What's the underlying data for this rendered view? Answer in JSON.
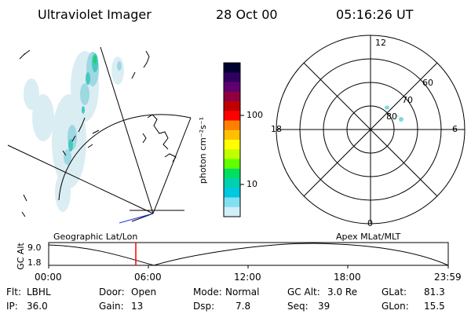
{
  "header": {
    "instrument": "Ultraviolet Imager",
    "date": "28 Oct 00",
    "time": "05:16:26 UT"
  },
  "colorbar": {
    "label": "photon cm⁻²s⁻¹",
    "ticks": [
      "100",
      "10"
    ],
    "colors": [
      "#000030",
      "#300060",
      "#600070",
      "#900040",
      "#c00000",
      "#ff0000",
      "#ff8000",
      "#ffc000",
      "#ffff00",
      "#c0ff00",
      "#60ff00",
      "#00e060",
      "#00d0b0",
      "#00c8e0",
      "#80e0f0",
      "#d0f0f8"
    ]
  },
  "polar": {
    "hour_labels": {
      "top": "12",
      "left": "18",
      "right": "6",
      "bottom": "0"
    },
    "lat_labels": [
      "60",
      "70",
      "80"
    ]
  },
  "timeline": {
    "left_title": "Geographic Lat/Lon",
    "right_title": "Apex MLat/MLT",
    "y_label": "GC Alt",
    "y_ticks": [
      "9.0",
      "1.8"
    ],
    "x_ticks": [
      "00:00",
      "06:00",
      "12:00",
      "18:00",
      "23:59"
    ],
    "marker_color": "#ff0000"
  },
  "status": {
    "flt_label": "Flt:",
    "flt_value": "LBHL",
    "ip_label": "IP:",
    "ip_value": "36.0",
    "door_label": "Door:",
    "door_value": "Open",
    "gain_label": "Gain:",
    "gain_value": "13",
    "mode_label": "Mode:",
    "mode_value": "Normal",
    "dsp_label": "Dsp:",
    "dsp_value": "7.8",
    "gcalt_label": "GC Alt:",
    "gcalt_value": "3.0 Re",
    "seq_label": "Seq:",
    "seq_value": "39",
    "glat_label": "GLat:",
    "glat_value": "81.3",
    "glon_label": "GLon:",
    "glon_value": "15.5"
  }
}
